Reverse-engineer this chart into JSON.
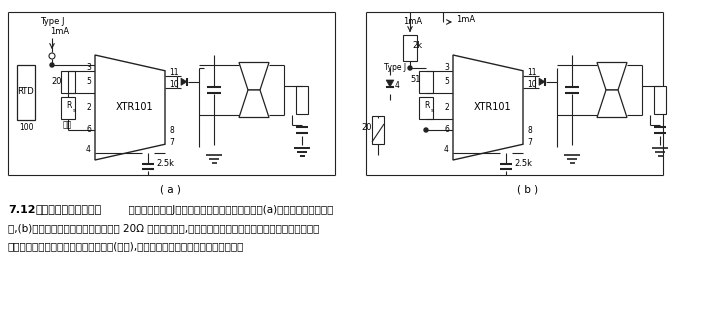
{
  "background_color": "#ffffff",
  "fig_width": 7.05,
  "fig_height": 3.09,
  "dpi": 100,
  "caption_number": "7.12",
  "caption_title": "热电偶温度变送器电路",
  "caption_text1": "  两电路都是采用J型热电偶组成。两者不同之处为(a)采用铂电阻作冷端补",
  "caption_text2": "偿,(b)采用硅二极管冷端补偿。图中的 20Ω 为调零电位器,在电路的设计计算中应按照铂电阻及硅二极管的",
  "caption_text3": "温度灵敏度补偿。由于环境温度的变化(冷端),确实将热电偶的冷端补偿到等摄氏度。",
  "label_a": "( a )",
  "label_b": "( b )",
  "text_color": "#000000",
  "font_size_caption": 7.5,
  "font_size_label": 7.5,
  "font_size_bold": 8.0
}
